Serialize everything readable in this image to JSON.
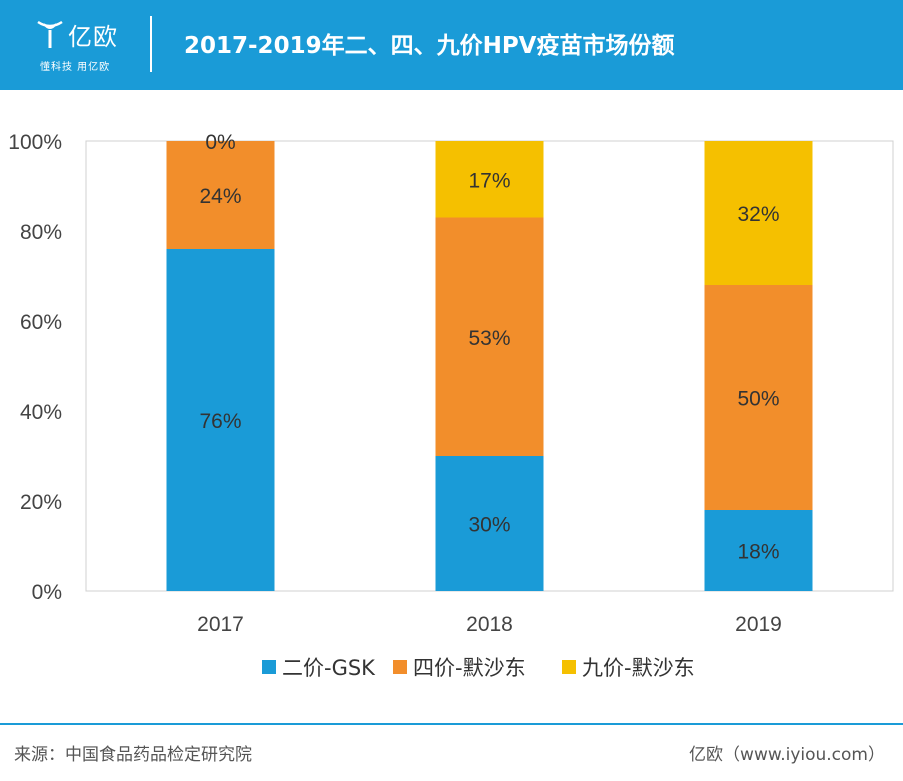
{
  "header": {
    "logo_text": "亿欧",
    "logo_slogan": "懂科技 用亿欧",
    "title": "2017-2019年二、四、九价HPV疫苗市场份额"
  },
  "colors": {
    "header_bg": "#1a9bd7",
    "series": [
      "#1a9bd7",
      "#f28e2b",
      "#f5c000"
    ]
  },
  "chart_data": {
    "type": "bar",
    "stacked": true,
    "categories": [
      "2017",
      "2018",
      "2019"
    ],
    "series": [
      {
        "name": "二价-GSK",
        "values": [
          76,
          30,
          18
        ],
        "labels": [
          "76%",
          "30%",
          "18%"
        ]
      },
      {
        "name": "四价-默沙东",
        "values": [
          24,
          53,
          50
        ],
        "labels": [
          "24%",
          "53%",
          "50%"
        ]
      },
      {
        "name": "九价-默沙东",
        "values": [
          0,
          17,
          32
        ],
        "labels": [
          "0%",
          "17%",
          "32%"
        ]
      }
    ],
    "y_ticks": [
      "0%",
      "20%",
      "40%",
      "60%",
      "80%",
      "100%"
    ],
    "ylim": [
      0,
      100
    ],
    "grid": false,
    "legend_position": "bottom"
  },
  "footer": {
    "source": "来源：中国食品药品检定研究院",
    "site": "亿欧（www.iyiou.com）"
  }
}
